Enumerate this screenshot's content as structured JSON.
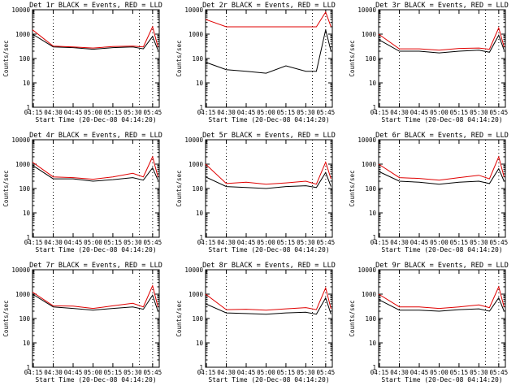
{
  "colors": {
    "events": "#000000",
    "lld": "#e00000",
    "axis": "#000000",
    "background": "#ffffff"
  },
  "common": {
    "ylabel": "Counts/sec",
    "xlabel": "Start Time (20-Dec-08 04:14:20)",
    "x_tick_labels": [
      "04:15",
      "04:30",
      "04:45",
      "05:00",
      "05:15",
      "05:30",
      "05:45"
    ],
    "y_tick_labels": [
      "1",
      "10",
      "100",
      "1000",
      "10000"
    ]
  },
  "chart_data": [
    {
      "type": "line",
      "title": "Det 1r BLACK = Events, RED = LLD",
      "scale": "log",
      "x": [
        "04:14:20",
        "04:30",
        "04:45",
        "05:00",
        "05:15",
        "05:30",
        "05:38",
        "05:45",
        "05:49"
      ],
      "xlim": [
        "04:14:20",
        "05:50"
      ],
      "ylim": [
        1,
        10000
      ],
      "vlines": [
        "04:14:20",
        "04:30",
        "05:35",
        "05:45"
      ],
      "series": [
        {
          "values": [
            1000,
            300,
            280,
            240,
            280,
            300,
            250,
            800,
            220
          ]
        },
        {
          "values": [
            1500,
            320,
            300,
            270,
            310,
            320,
            300,
            2000,
            300
          ]
        }
      ]
    },
    {
      "type": "line",
      "title": "Det 2r BLACK = Events, RED = LLD",
      "scale": "log",
      "x": [
        "04:14:20",
        "04:30",
        "04:45",
        "05:00",
        "05:15",
        "05:30",
        "05:38",
        "05:45",
        "05:49"
      ],
      "xlim": [
        "04:14:20",
        "05:50"
      ],
      "ylim": [
        1,
        10000
      ],
      "vlines": [
        "04:14:20",
        "04:30",
        "05:35",
        "05:45"
      ],
      "series": [
        {
          "values": [
            70,
            35,
            30,
            25,
            50,
            30,
            30,
            1500,
            200
          ]
        },
        {
          "values": [
            4000,
            2000,
            2000,
            2000,
            2000,
            2000,
            2000,
            8000,
            2000
          ]
        }
      ]
    },
    {
      "type": "line",
      "title": "Det 3r BLACK = Events, RED = LLD",
      "scale": "log",
      "x": [
        "04:14:20",
        "04:30",
        "04:45",
        "05:00",
        "05:15",
        "05:30",
        "05:38",
        "05:45",
        "05:49"
      ],
      "xlim": [
        "04:14:20",
        "05:50"
      ],
      "ylim": [
        1,
        10000
      ],
      "vlines": [
        "04:14:20",
        "04:30",
        "05:35",
        "05:45"
      ],
      "series": [
        {
          "values": [
            600,
            200,
            200,
            170,
            200,
            220,
            180,
            900,
            220
          ]
        },
        {
          "values": [
            1000,
            250,
            250,
            220,
            260,
            270,
            240,
            1800,
            300
          ]
        }
      ]
    },
    {
      "type": "line",
      "title": "Det 4r BLACK = Events, RED = LLD",
      "scale": "log",
      "x": [
        "04:14:20",
        "04:30",
        "04:45",
        "05:00",
        "05:15",
        "05:30",
        "05:38",
        "05:45",
        "05:49"
      ],
      "xlim": [
        "04:14:20",
        "05:50"
      ],
      "ylim": [
        1,
        10000
      ],
      "vlines": [
        "04:14:20",
        "04:30",
        "05:35",
        "05:45"
      ],
      "series": [
        {
          "values": [
            900,
            250,
            250,
            200,
            230,
            280,
            220,
            700,
            220
          ]
        },
        {
          "values": [
            1200,
            300,
            280,
            240,
            300,
            420,
            300,
            2000,
            300
          ]
        }
      ]
    },
    {
      "type": "line",
      "title": "Det 5r BLACK = Events, RED = LLD",
      "scale": "log",
      "x": [
        "04:14:20",
        "04:30",
        "04:45",
        "05:00",
        "05:15",
        "05:30",
        "05:38",
        "05:45",
        "05:49"
      ],
      "xlim": [
        "04:14:20",
        "05:50"
      ],
      "ylim": [
        1,
        10000
      ],
      "vlines": [
        "04:14:20",
        "04:30",
        "05:35",
        "05:45"
      ],
      "series": [
        {
          "values": [
            300,
            120,
            110,
            100,
            120,
            130,
            110,
            450,
            120
          ]
        },
        {
          "values": [
            1000,
            160,
            180,
            150,
            170,
            200,
            150,
            1200,
            250
          ]
        }
      ]
    },
    {
      "type": "line",
      "title": "Det 6r BLACK = Events, RED = LLD",
      "scale": "log",
      "x": [
        "04:14:20",
        "04:30",
        "04:45",
        "05:00",
        "05:15",
        "05:30",
        "05:38",
        "05:45",
        "05:49"
      ],
      "xlim": [
        "04:14:20",
        "05:50"
      ],
      "ylim": [
        1,
        10000
      ],
      "vlines": [
        "04:14:20",
        "04:30",
        "05:35",
        "05:45"
      ],
      "series": [
        {
          "values": [
            500,
            200,
            180,
            150,
            180,
            200,
            160,
            650,
            200
          ]
        },
        {
          "values": [
            1000,
            280,
            260,
            220,
            280,
            350,
            250,
            2000,
            300
          ]
        }
      ]
    },
    {
      "type": "line",
      "title": "Det 7r BLACK = Events, RED = LLD",
      "scale": "log",
      "x": [
        "04:14:20",
        "04:30",
        "04:45",
        "05:00",
        "05:15",
        "05:30",
        "05:38",
        "05:45",
        "05:49"
      ],
      "xlim": [
        "04:14:20",
        "05:50"
      ],
      "ylim": [
        1,
        10000
      ],
      "vlines": [
        "04:14:20",
        "04:30",
        "05:35",
        "05:45"
      ],
      "series": [
        {
          "values": [
            1000,
            300,
            260,
            220,
            260,
            300,
            240,
            900,
            200
          ]
        },
        {
          "values": [
            1200,
            330,
            320,
            260,
            330,
            420,
            300,
            2200,
            300
          ]
        }
      ]
    },
    {
      "type": "line",
      "title": "Det 8r BLACK = Events, RED = LLD",
      "scale": "log",
      "x": [
        "04:14:20",
        "04:30",
        "04:45",
        "05:00",
        "05:15",
        "05:30",
        "05:38",
        "05:45",
        "05:49"
      ],
      "xlim": [
        "04:14:20",
        "05:50"
      ],
      "ylim": [
        1,
        10000
      ],
      "vlines": [
        "04:14:20",
        "04:30",
        "05:35",
        "05:45"
      ],
      "series": [
        {
          "values": [
            400,
            170,
            160,
            150,
            170,
            180,
            150,
            700,
            150
          ]
        },
        {
          "values": [
            1000,
            230,
            240,
            220,
            250,
            280,
            230,
            1800,
            250
          ]
        }
      ]
    },
    {
      "type": "line",
      "title": "Det 9r BLACK = Events, RED = LLD",
      "scale": "log",
      "x": [
        "04:14:20",
        "04:30",
        "04:45",
        "05:00",
        "05:15",
        "05:30",
        "05:38",
        "05:45",
        "05:49"
      ],
      "xlim": [
        "04:14:20",
        "05:50"
      ],
      "ylim": [
        1,
        10000
      ],
      "vlines": [
        "04:14:20",
        "04:30",
        "05:35",
        "05:45"
      ],
      "series": [
        {
          "values": [
            600,
            220,
            220,
            200,
            230,
            250,
            200,
            700,
            200
          ]
        },
        {
          "values": [
            1000,
            300,
            300,
            260,
            300,
            360,
            280,
            2000,
            300
          ]
        }
      ]
    }
  ]
}
